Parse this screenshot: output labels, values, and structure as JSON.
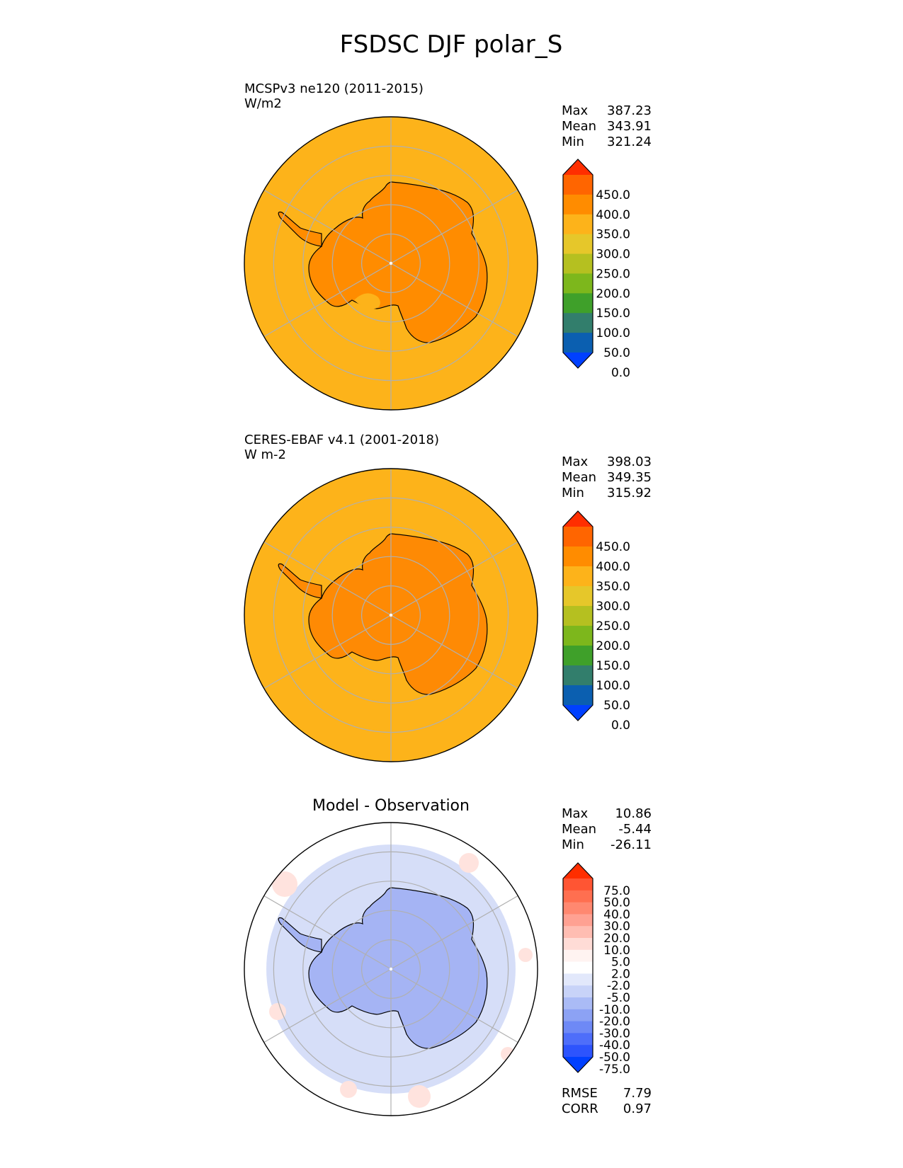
{
  "figure": {
    "title": "FSDSC DJF polar_S"
  },
  "colors": {
    "land_model": "#FF8C00",
    "ocean_model": "#FDB31A",
    "land_obs": "#FE8A04",
    "ocean_obs": "#FDB31A",
    "diff_land": "#A5B4F4",
    "diff_ocean": "#D6DEF8",
    "grid": "#B0B0B0",
    "coast": "#000000"
  },
  "chart_data": [
    {
      "type": "heatmap",
      "projection": "south-polar-stereographic",
      "title": "",
      "subtitle_left": "MCSPv3 ne120 (2011-2015)",
      "units": "W/m2",
      "stats": [
        {
          "label": "Max",
          "value": "387.23"
        },
        {
          "label": "Mean",
          "value": "343.91"
        },
        {
          "label": "Min",
          "value": "321.24"
        }
      ],
      "colorbar": {
        "ticks": [
          "450.0",
          "400.0",
          "350.0",
          "300.0",
          "250.0",
          "200.0",
          "150.0",
          "100.0",
          "50.0",
          "0.0"
        ],
        "colors": [
          "#FF2E00",
          "#FF6500",
          "#FF8C00",
          "#FDB31A",
          "#E6C72A",
          "#B5C020",
          "#7DB71C",
          "#3FA02A",
          "#327E6C",
          "#0B5FB0",
          "#0040FF"
        ],
        "extend": "both"
      },
      "fields": {
        "land_value": 365,
        "ocean_value": 330
      },
      "grid": true
    },
    {
      "type": "heatmap",
      "projection": "south-polar-stereographic",
      "title": "",
      "subtitle_left": "CERES-EBAF v4.1 (2001-2018)",
      "units": "W m-2",
      "stats": [
        {
          "label": "Max",
          "value": "398.03"
        },
        {
          "label": "Mean",
          "value": "349.35"
        },
        {
          "label": "Min",
          "value": "315.92"
        }
      ],
      "colorbar": {
        "ticks": [
          "450.0",
          "400.0",
          "350.0",
          "300.0",
          "250.0",
          "200.0",
          "150.0",
          "100.0",
          "50.0",
          "0.0"
        ],
        "colors": [
          "#FF2E00",
          "#FF6500",
          "#FF8C00",
          "#FDB31A",
          "#E6C72A",
          "#B5C020",
          "#7DB71C",
          "#3FA02A",
          "#327E6C",
          "#0B5FB0",
          "#0040FF"
        ],
        "extend": "both"
      },
      "fields": {
        "land_value": 372,
        "ocean_value": 332
      },
      "grid": true
    },
    {
      "type": "heatmap",
      "projection": "south-polar-stereographic",
      "title": "Model - Observation",
      "subtitle_left": "",
      "units": "",
      "stats": [
        {
          "label": "Max",
          "value": "10.86"
        },
        {
          "label": "Mean",
          "value": "-5.44"
        },
        {
          "label": "Min",
          "value": "-26.11"
        }
      ],
      "extra_stats": [
        {
          "label": "RMSE",
          "value": "7.79"
        },
        {
          "label": "CORR",
          "value": "0.97"
        }
      ],
      "colorbar": {
        "ticks": [
          "75.0",
          "50.0",
          "40.0",
          "30.0",
          "20.0",
          "10.0",
          "5.0",
          "2.0",
          "-2.0",
          "-5.0",
          "-10.0",
          "-20.0",
          "-30.0",
          "-40.0",
          "-50.0",
          "-75.0"
        ],
        "colors": [
          "#FF2E00",
          "#FF5533",
          "#FF6F50",
          "#FF8870",
          "#FFA192",
          "#FFBDB2",
          "#FFDCD6",
          "#FFF3F1",
          "#FFFFFF",
          "#E2E8FB",
          "#C8D3F8",
          "#AABBF6",
          "#8CA2F4",
          "#6E89F6",
          "#4E6EFA",
          "#2D54FD",
          "#0040FF"
        ],
        "extend": "both"
      },
      "fields": {
        "land_value": -12,
        "ocean_value": -4
      },
      "grid": true
    }
  ]
}
